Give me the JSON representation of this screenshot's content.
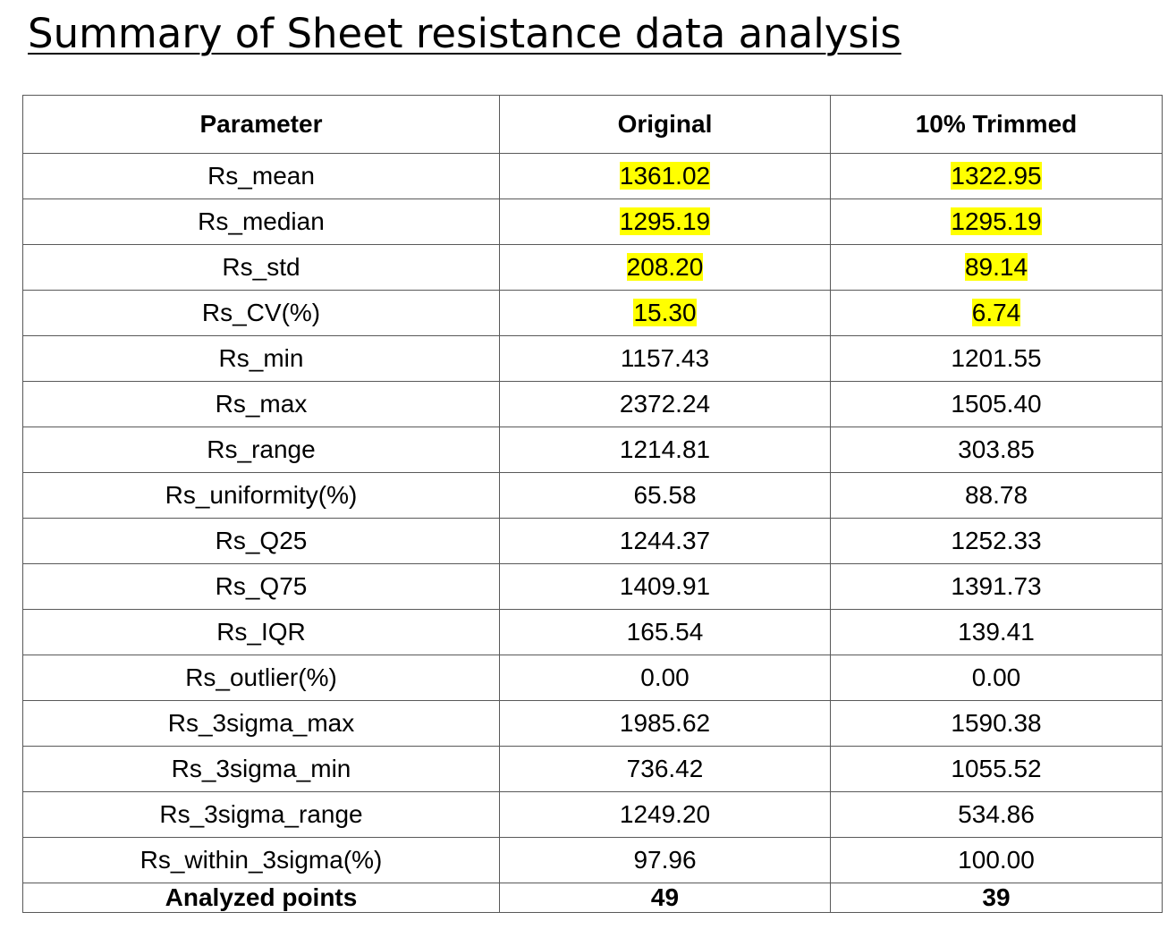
{
  "title": "Summary of Sheet resistance data analysis",
  "table": {
    "headers": [
      "Parameter",
      "Original",
      "10% Trimmed"
    ],
    "highlight_color": "#ffff00",
    "rows": [
      {
        "param": "Rs_mean",
        "original": "1361.02",
        "trimmed": "1322.95",
        "highlighted": true
      },
      {
        "param": "Rs_median",
        "original": "1295.19",
        "trimmed": "1295.19",
        "highlighted": true
      },
      {
        "param": "Rs_std",
        "original": "208.20",
        "trimmed": "89.14",
        "highlighted": true
      },
      {
        "param": "Rs_CV(%)",
        "original": "15.30",
        "trimmed": "6.74",
        "highlighted": true
      },
      {
        "param": "Rs_min",
        "original": "1157.43",
        "trimmed": "1201.55",
        "highlighted": false
      },
      {
        "param": "Rs_max",
        "original": "2372.24",
        "trimmed": "1505.40",
        "highlighted": false
      },
      {
        "param": "Rs_range",
        "original": "1214.81",
        "trimmed": "303.85",
        "highlighted": false
      },
      {
        "param": "Rs_uniformity(%)",
        "original": "65.58",
        "trimmed": "88.78",
        "highlighted": false
      },
      {
        "param": "Rs_Q25",
        "original": "1244.37",
        "trimmed": "1252.33",
        "highlighted": false
      },
      {
        "param": "Rs_Q75",
        "original": "1409.91",
        "trimmed": "1391.73",
        "highlighted": false
      },
      {
        "param": "Rs_IQR",
        "original": "165.54",
        "trimmed": "139.41",
        "highlighted": false
      },
      {
        "param": "Rs_outlier(%)",
        "original": "0.00",
        "trimmed": "0.00",
        "highlighted": false
      },
      {
        "param": "Rs_3sigma_max",
        "original": "1985.62",
        "trimmed": "1590.38",
        "highlighted": false
      },
      {
        "param": "Rs_3sigma_min",
        "original": "736.42",
        "trimmed": "1055.52",
        "highlighted": false
      },
      {
        "param": "Rs_3sigma_range",
        "original": "1249.20",
        "trimmed": "534.86",
        "highlighted": false
      },
      {
        "param": "Rs_within_3sigma(%)",
        "original": "97.96",
        "trimmed": "100.00",
        "highlighted": false
      }
    ],
    "footer": {
      "param": "Analyzed points",
      "original": "49",
      "trimmed": "39"
    }
  }
}
